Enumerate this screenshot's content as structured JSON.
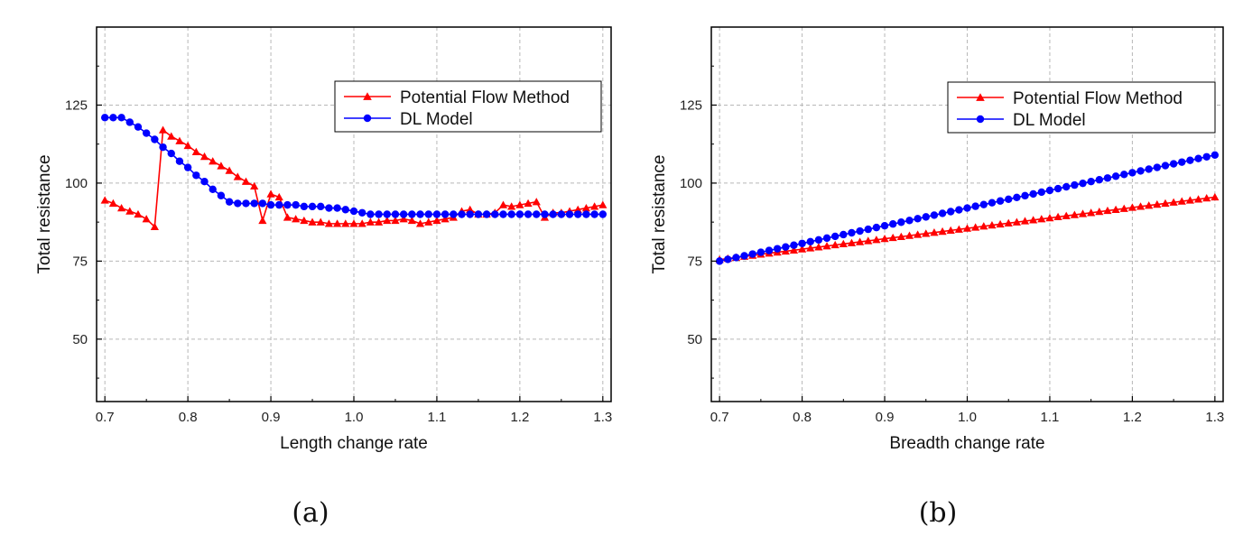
{
  "chart_data": [
    {
      "type": "line",
      "caption": "(a)",
      "xlabel": "Length change rate",
      "ylabel": "Total resistance",
      "xlim": [
        0.69,
        1.31
      ],
      "ylim": [
        30,
        150
      ],
      "xticks": [
        "0.7",
        "0.8",
        "0.9",
        "1.0",
        "1.1",
        "1.2",
        "1.3"
      ],
      "yticks": [
        "50",
        "75",
        "100",
        "125"
      ],
      "grid": true,
      "legend_position": "top-right",
      "x": [
        0.7,
        0.71,
        0.72,
        0.73,
        0.74,
        0.75,
        0.76,
        0.77,
        0.78,
        0.79,
        0.8,
        0.81,
        0.82,
        0.83,
        0.84,
        0.85,
        0.86,
        0.87,
        0.88,
        0.89,
        0.9,
        0.91,
        0.92,
        0.93,
        0.94,
        0.95,
        0.96,
        0.97,
        0.98,
        0.99,
        1.0,
        1.01,
        1.02,
        1.03,
        1.04,
        1.05,
        1.06,
        1.07,
        1.08,
        1.09,
        1.1,
        1.11,
        1.12,
        1.13,
        1.14,
        1.15,
        1.16,
        1.17,
        1.18,
        1.19,
        1.2,
        1.21,
        1.22,
        1.23,
        1.24,
        1.25,
        1.26,
        1.27,
        1.28,
        1.29,
        1.3
      ],
      "series": [
        {
          "name": "Potential Flow Method",
          "color": "#ff0000",
          "marker": "triangle",
          "values": [
            94.5,
            93.5,
            92.0,
            91.0,
            90.0,
            88.5,
            86.0,
            117.0,
            115.0,
            113.5,
            112.0,
            110.0,
            108.5,
            107.0,
            105.5,
            104.0,
            102.0,
            100.5,
            99.0,
            88.0,
            96.5,
            95.5,
            89.0,
            88.5,
            88.0,
            87.5,
            87.5,
            87.0,
            87.0,
            87.0,
            87.0,
            87.0,
            87.5,
            87.5,
            88.0,
            88.0,
            88.5,
            88.0,
            87.0,
            87.5,
            88.0,
            88.5,
            89.0,
            91.0,
            91.5,
            90.0,
            90.0,
            90.5,
            93.0,
            92.5,
            93.0,
            93.5,
            94.0,
            89.0,
            90.5,
            90.5,
            91.0,
            91.5,
            92.0,
            92.5,
            93.0
          ]
        },
        {
          "name": "DL Model",
          "color": "#0000ff",
          "marker": "circle",
          "values": [
            121.0,
            121.0,
            121.0,
            119.5,
            118.0,
            116.0,
            114.0,
            111.5,
            109.5,
            107.0,
            105.0,
            102.5,
            100.5,
            98.0,
            96.0,
            94.0,
            93.5,
            93.5,
            93.5,
            93.5,
            93.0,
            93.0,
            93.0,
            93.0,
            92.5,
            92.5,
            92.5,
            92.0,
            92.0,
            91.5,
            91.0,
            90.5,
            90.0,
            90.0,
            90.0,
            90.0,
            90.0,
            90.0,
            90.0,
            90.0,
            90.0,
            90.0,
            90.0,
            90.0,
            90.0,
            90.0,
            90.0,
            90.0,
            90.0,
            90.0,
            90.0,
            90.0,
            90.0,
            90.0,
            90.0,
            90.0,
            90.0,
            90.0,
            90.0,
            90.0,
            90.0
          ]
        }
      ]
    },
    {
      "type": "line",
      "caption": "(b)",
      "xlabel": "Breadth change rate",
      "ylabel": "Total resistance",
      "xlim": [
        0.69,
        1.31
      ],
      "ylim": [
        30,
        150
      ],
      "xticks": [
        "0.7",
        "0.8",
        "0.9",
        "1.0",
        "1.1",
        "1.2",
        "1.3"
      ],
      "yticks": [
        "50",
        "75",
        "100",
        "125"
      ],
      "grid": true,
      "legend_position": "top-right",
      "x_start": 0.7,
      "x_step": 0.01,
      "point_count": 61,
      "series": [
        {
          "name": "Potential Flow Method",
          "color": "#ff0000",
          "marker": "triangle",
          "start_value": 75.5,
          "end_value": 95.5
        },
        {
          "name": "DL Model",
          "color": "#0000ff",
          "marker": "circle",
          "start_value": 75.0,
          "end_value": 109.0
        }
      ]
    }
  ]
}
